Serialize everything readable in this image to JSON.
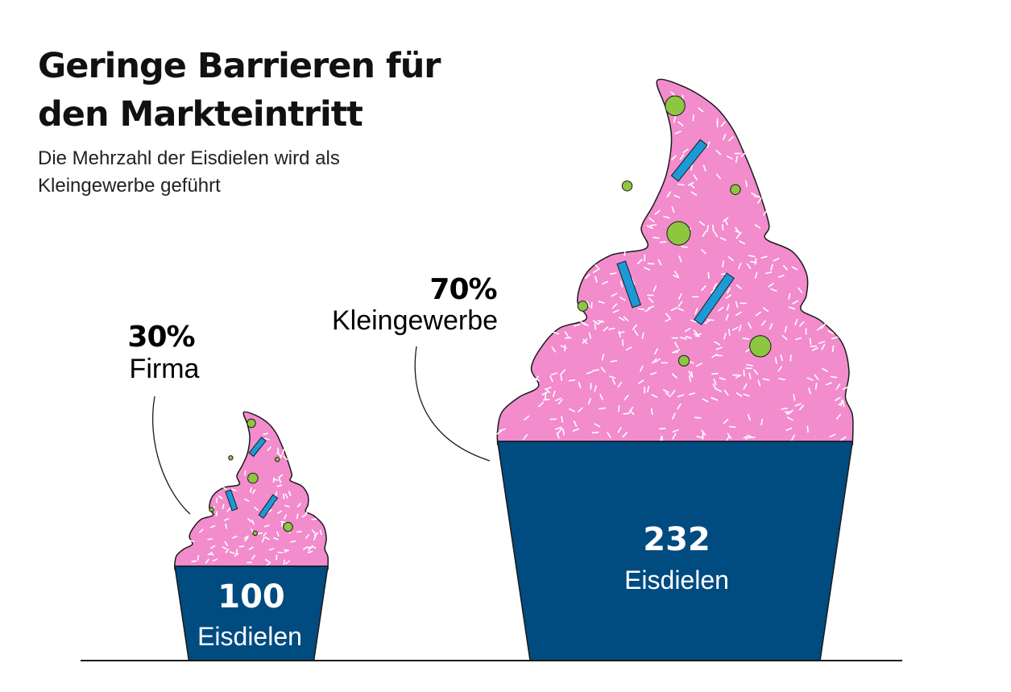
{
  "title": "Geringe Barrieren für den Markteintritt",
  "subtitle": "Die Mehrzahl der Eisdielen wird als Kleingewerbe geführt",
  "colors": {
    "cup": "#004b80",
    "cream": "#f28ccd",
    "sprinkle_white": "#ffffff",
    "sprinkle_blue": "#1a9bd8",
    "sprinkle_green": "#8dc63f",
    "outline": "#1a1a1a"
  },
  "chart_data": {
    "type": "bar",
    "categories": [
      "Firma",
      "Kleingewerbe"
    ],
    "values": [
      100,
      232
    ],
    "value_unit": "Eisdielen",
    "percentages": [
      "30%",
      "70%"
    ],
    "title": "Geringe Barrieren für den Markteintritt",
    "subtitle": "Die Mehrzahl der Eisdielen wird als Kleingewerbe geführt",
    "value_labels": [
      "100",
      "232"
    ]
  }
}
